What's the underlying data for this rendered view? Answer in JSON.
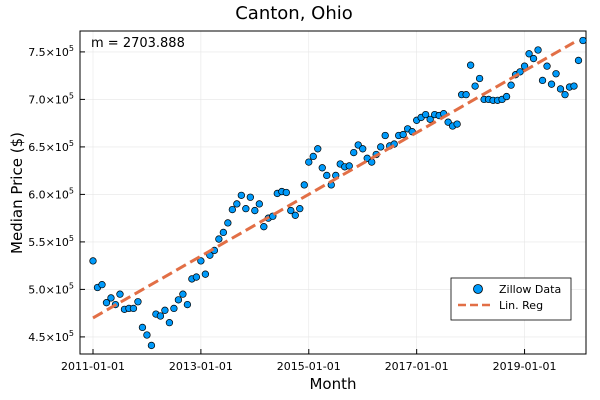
{
  "chart_data": {
    "type": "scatter",
    "title": "Canton, Ohio",
    "xlabel": "Month",
    "ylabel": "Median Price ($)",
    "annotation": "m = 2703.888",
    "x_start": "2011-01-01",
    "x_end": "2019-12-01",
    "x_ticks": [
      "2011-01-01",
      "2013-01-01",
      "2015-01-01",
      "2017-01-01",
      "2019-01-01"
    ],
    "ylim": [
      432000,
      772000
    ],
    "y_ticks": [
      {
        "value": 450000,
        "mantissa": "4.5×10",
        "exp": "5"
      },
      {
        "value": 500000,
        "mantissa": "5.0×10",
        "exp": "5"
      },
      {
        "value": 550000,
        "mantissa": "5.5×10",
        "exp": "5"
      },
      {
        "value": 600000,
        "mantissa": "6.0×10",
        "exp": "5"
      },
      {
        "value": 650000,
        "mantissa": "6.5×10",
        "exp": "5"
      },
      {
        "value": 700000,
        "mantissa": "7.0×10",
        "exp": "5"
      },
      {
        "value": 750000,
        "mantissa": "7.5×10",
        "exp": "5"
      }
    ],
    "grid": true,
    "legend_position": "bottom-right",
    "series": [
      {
        "name": "Zillow Data",
        "kind": "scatter",
        "color": "#009AFA",
        "values": [
          530000,
          502000,
          505000,
          486000,
          491000,
          484000,
          495000,
          479000,
          480000,
          480000,
          487000,
          460000,
          452000,
          441000,
          474000,
          472000,
          478000,
          465000,
          480000,
          489000,
          495000,
          484000,
          511000,
          513000,
          530000,
          516000,
          536000,
          541000,
          553000,
          560000,
          570000,
          584000,
          590000,
          599000,
          585000,
          597000,
          583000,
          590000,
          566000,
          575000,
          577000,
          601000,
          603000,
          602000,
          583000,
          578000,
          585000,
          610000,
          634000,
          640000,
          648000,
          628000,
          620000,
          610000,
          620000,
          632000,
          629000,
          630000,
          644000,
          652000,
          648000,
          638000,
          634000,
          642000,
          650000,
          662000,
          651000,
          653000,
          662000,
          663000,
          669000,
          666000,
          678000,
          681000,
          684000,
          679000,
          684000,
          683000,
          685000,
          676000,
          672000,
          674000,
          705000,
          705000,
          736000,
          714000,
          722000,
          700000,
          700000,
          699000,
          699000,
          700000,
          703000,
          715000,
          726000,
          729000,
          735000,
          748000,
          743000,
          752000,
          720000,
          735000,
          716000,
          727000,
          711000,
          705000,
          713000,
          714000,
          741000,
          762000
        ]
      },
      {
        "name": "Lin. Reg",
        "kind": "line",
        "color": "#E26F46",
        "start": 470000,
        "end": 760000
      }
    ]
  }
}
